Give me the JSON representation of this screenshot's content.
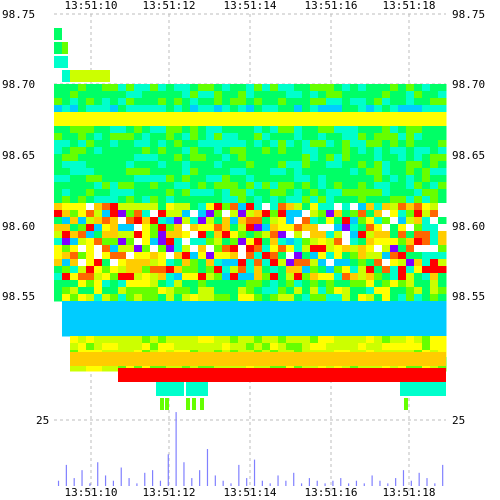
{
  "chart_data": {
    "type": "heatmap",
    "title": "",
    "xlabel": "",
    "ylabel": "",
    "x_ticks": [
      "13:51:10",
      "13:51:12",
      "13:51:14",
      "13:51:16",
      "13:51:18"
    ],
    "y_ticks": [
      "98.75",
      "98.70",
      "98.65",
      "98.60",
      "98.55"
    ],
    "ylim": [
      98.49,
      98.75
    ],
    "grid": true,
    "palette": [
      "#0000ff",
      "#0066ff",
      "#00ccff",
      "#00ffcc",
      "#00ff66",
      "#66ff00",
      "#ccff00",
      "#ffff00",
      "#ffcc00",
      "#ff6600",
      "#ff0000",
      "#8000ff"
    ],
    "volume_panel": {
      "y_tick": "25",
      "bar_color": "#8080ff",
      "volumes": [
        2,
        8,
        3,
        6,
        1,
        9,
        4,
        2,
        7,
        3,
        1,
        5,
        6,
        2,
        12,
        28,
        9,
        3,
        6,
        14,
        4,
        2,
        1,
        8,
        3,
        10,
        2,
        1,
        4,
        2,
        5,
        1,
        3,
        2,
        1,
        2,
        3,
        1,
        2,
        1,
        4,
        2,
        1,
        3,
        6,
        2,
        5,
        3,
        1,
        8
      ]
    }
  }
}
